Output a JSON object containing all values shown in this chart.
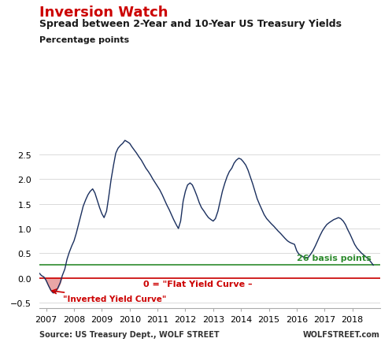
{
  "title1": "Inversion Watch",
  "title2": "Spread between 2-Year and 10-Year US Treasury Yields",
  "ylabel": "Percentage points",
  "source_left": "Source: US Treasury Dept., WOLF STREET",
  "source_right": "WOLFSTREET.com",
  "line_color": "#1a2f5e",
  "zero_line_color": "#cc0000",
  "basis_line_color": "#2e8b2e",
  "basis_label": "26 basis points",
  "zero_label": "0 = \"Flat Yield Curve –",
  "inverted_label": "\"Inverted Yield Curve\"",
  "ylim": [
    -0.6,
    3.0
  ],
  "title1_color": "#cc0000",
  "title2_color": "#1a1a1a",
  "annotation_color": "#cc0000",
  "basis_color": "#2e8b2e",
  "years": [
    2007,
    2008,
    2009,
    2010,
    2011,
    2012,
    2013,
    2014,
    2015,
    2016,
    2017,
    2018
  ],
  "data_x": [
    2006.75,
    2006.83,
    2006.92,
    2007.0,
    2007.08,
    2007.17,
    2007.25,
    2007.33,
    2007.42,
    2007.5,
    2007.58,
    2007.67,
    2007.75,
    2007.83,
    2007.92,
    2008.0,
    2008.08,
    2008.17,
    2008.25,
    2008.33,
    2008.42,
    2008.5,
    2008.58,
    2008.67,
    2008.75,
    2008.83,
    2008.92,
    2009.0,
    2009.08,
    2009.17,
    2009.25,
    2009.33,
    2009.42,
    2009.5,
    2009.58,
    2009.67,
    2009.75,
    2009.83,
    2009.92,
    2010.0,
    2010.08,
    2010.17,
    2010.25,
    2010.33,
    2010.42,
    2010.5,
    2010.58,
    2010.67,
    2010.75,
    2010.83,
    2010.92,
    2011.0,
    2011.08,
    2011.17,
    2011.25,
    2011.33,
    2011.42,
    2011.5,
    2011.58,
    2011.67,
    2011.75,
    2011.83,
    2011.92,
    2012.0,
    2012.08,
    2012.17,
    2012.25,
    2012.33,
    2012.42,
    2012.5,
    2012.58,
    2012.67,
    2012.75,
    2012.83,
    2012.92,
    2013.0,
    2013.08,
    2013.17,
    2013.25,
    2013.33,
    2013.42,
    2013.5,
    2013.58,
    2013.67,
    2013.75,
    2013.83,
    2013.92,
    2014.0,
    2014.08,
    2014.17,
    2014.25,
    2014.33,
    2014.42,
    2014.5,
    2014.58,
    2014.67,
    2014.75,
    2014.83,
    2014.92,
    2015.0,
    2015.08,
    2015.17,
    2015.25,
    2015.33,
    2015.42,
    2015.5,
    2015.58,
    2015.67,
    2015.75,
    2015.83,
    2015.92,
    2016.0,
    2016.08,
    2016.17,
    2016.25,
    2016.33,
    2016.42,
    2016.5,
    2016.58,
    2016.67,
    2016.75,
    2016.83,
    2016.92,
    2017.0,
    2017.08,
    2017.17,
    2017.25,
    2017.33,
    2017.42,
    2017.5,
    2017.58,
    2017.67,
    2017.75,
    2017.83,
    2017.92,
    2018.0,
    2018.08,
    2018.17,
    2018.25,
    2018.33,
    2018.42,
    2018.5,
    2018.58,
    2018.67,
    2018.75
  ],
  "data_y": [
    0.1,
    0.05,
    0.02,
    -0.05,
    -0.15,
    -0.25,
    -0.3,
    -0.28,
    -0.2,
    -0.1,
    0.05,
    0.18,
    0.38,
    0.52,
    0.65,
    0.75,
    0.9,
    1.1,
    1.28,
    1.45,
    1.58,
    1.68,
    1.75,
    1.8,
    1.72,
    1.58,
    1.42,
    1.3,
    1.22,
    1.35,
    1.65,
    1.98,
    2.28,
    2.52,
    2.62,
    2.68,
    2.72,
    2.78,
    2.75,
    2.72,
    2.65,
    2.58,
    2.52,
    2.45,
    2.38,
    2.3,
    2.22,
    2.15,
    2.08,
    2.0,
    1.92,
    1.85,
    1.78,
    1.68,
    1.58,
    1.48,
    1.38,
    1.28,
    1.18,
    1.08,
    1.0,
    1.15,
    1.55,
    1.75,
    1.88,
    1.92,
    1.88,
    1.78,
    1.65,
    1.52,
    1.42,
    1.35,
    1.28,
    1.22,
    1.18,
    1.15,
    1.2,
    1.35,
    1.55,
    1.75,
    1.92,
    2.05,
    2.15,
    2.22,
    2.32,
    2.38,
    2.42,
    2.4,
    2.35,
    2.28,
    2.18,
    2.05,
    1.9,
    1.75,
    1.6,
    1.48,
    1.38,
    1.28,
    1.2,
    1.15,
    1.1,
    1.05,
    1.0,
    0.95,
    0.9,
    0.85,
    0.8,
    0.75,
    0.72,
    0.7,
    0.68,
    0.55,
    0.48,
    0.45,
    0.42,
    0.4,
    0.42,
    0.48,
    0.55,
    0.65,
    0.75,
    0.85,
    0.95,
    1.02,
    1.08,
    1.12,
    1.15,
    1.18,
    1.2,
    1.22,
    1.2,
    1.15,
    1.08,
    0.98,
    0.88,
    0.78,
    0.68,
    0.6,
    0.55,
    0.5,
    0.46,
    0.42,
    0.38,
    0.32,
    0.26
  ]
}
